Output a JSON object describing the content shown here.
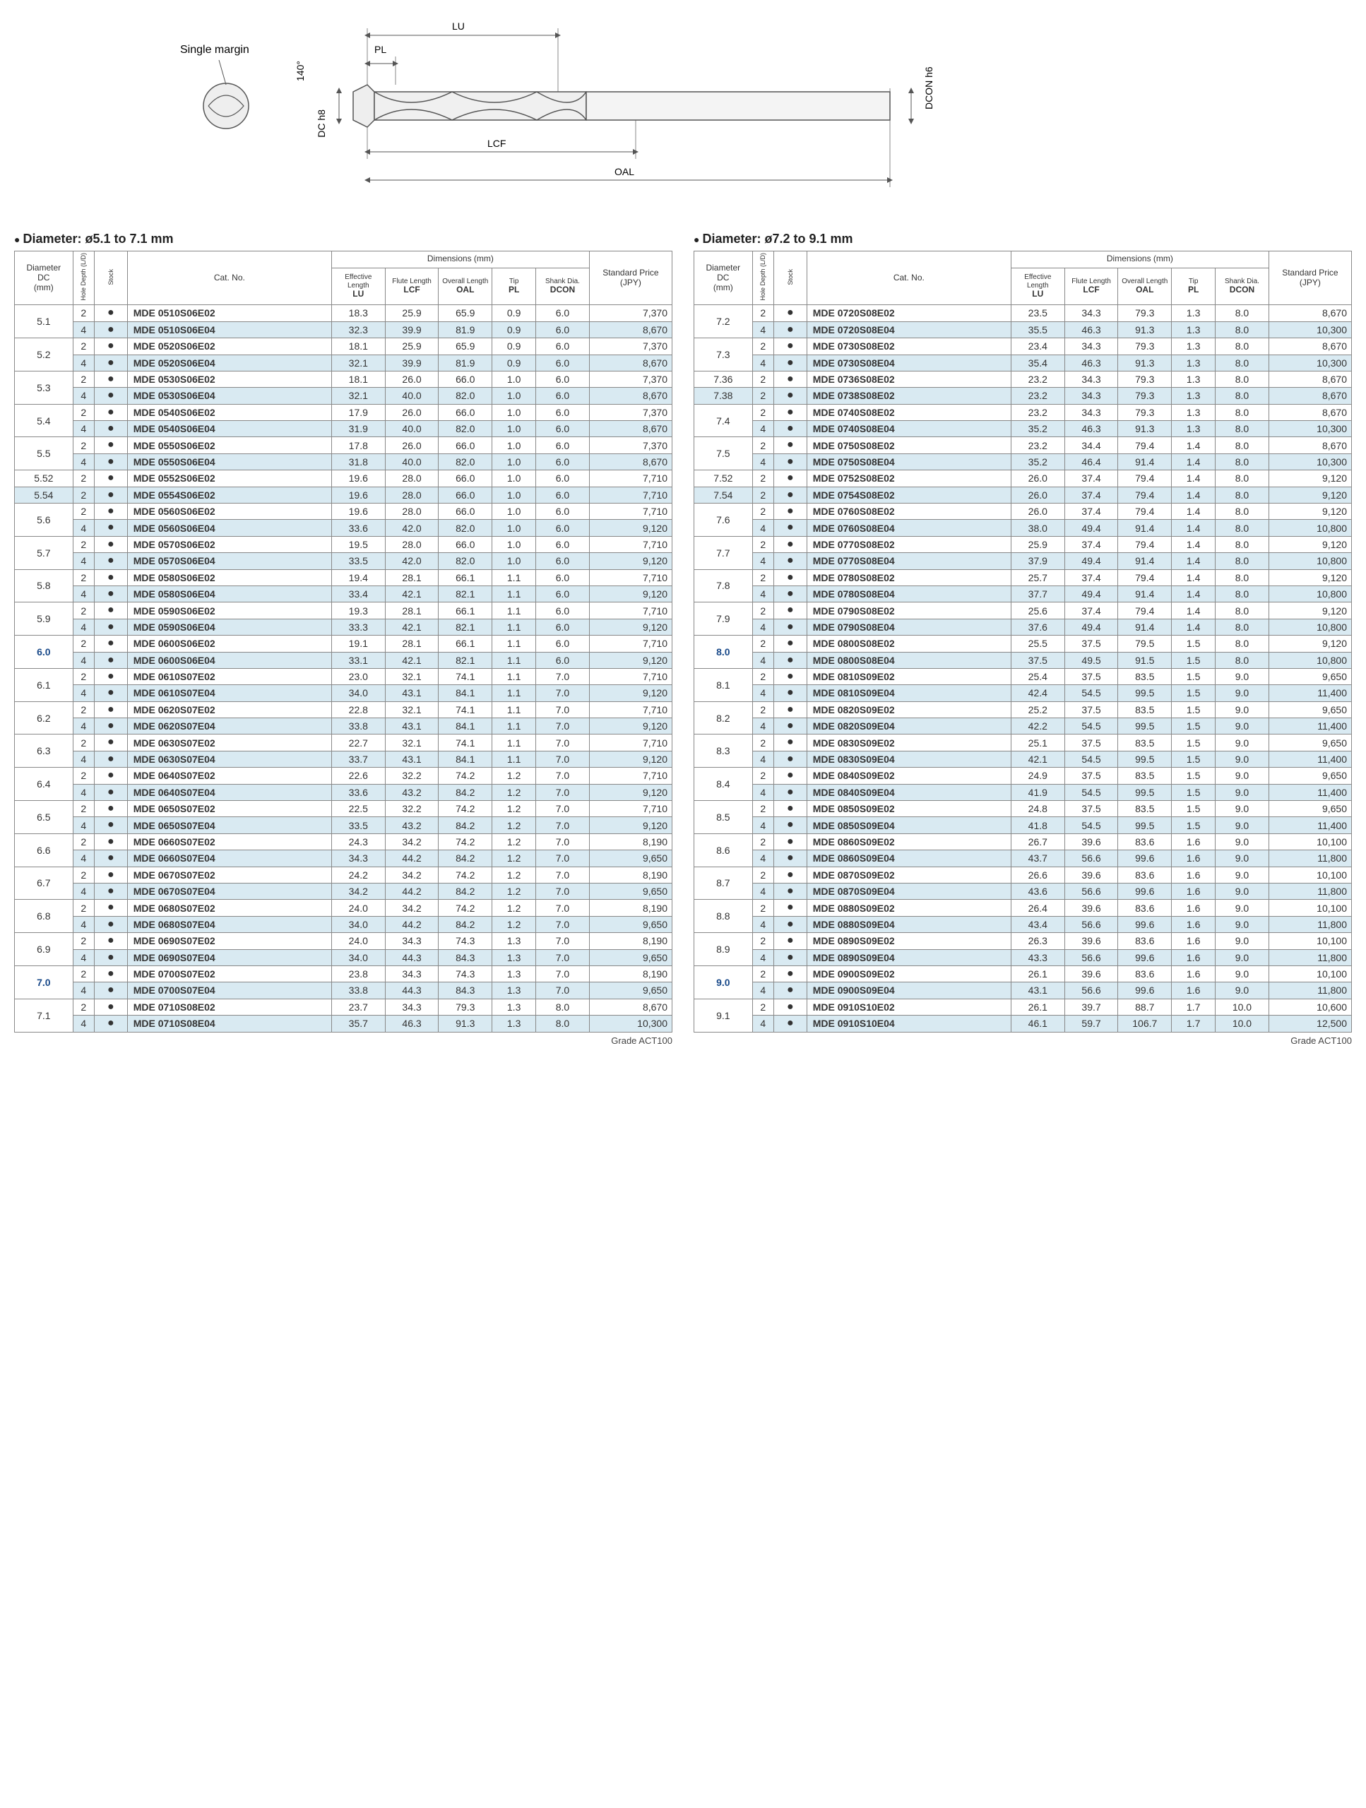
{
  "diagram": {
    "labels": {
      "single_margin": "Single margin",
      "angle": "140°",
      "dc_h8": "DC h8",
      "pl": "PL",
      "lu": "LU",
      "lcf": "LCF",
      "oal": "OAL",
      "dcon_h6": "DCON h6"
    },
    "colors": {
      "stroke": "#555555",
      "fill": "#dddddd"
    }
  },
  "section1_title": "Diameter: ø5.1 to 7.1 mm",
  "section2_title": "Diameter: ø7.2 to 9.1 mm",
  "grade_note": "Grade ACT100",
  "headers": {
    "dc": "Diameter\nDC\n(mm)",
    "depth": "Hole Depth (L/D)",
    "stock": "Stock",
    "catno": "Cat. No.",
    "dims": "Dimensions (mm)",
    "lu": "Effective Length",
    "lu_sym": "LU",
    "lcf": "Flute Length",
    "lcf_sym": "LCF",
    "oal": "Overall Length",
    "oal_sym": "OAL",
    "pl": "Tip",
    "pl_sym": "PL",
    "dcon": "Shank Dia.",
    "dcon_sym": "DCON",
    "price": "Standard Price\n(JPY)"
  },
  "highlight_dcs": [
    "6.0",
    "7.0",
    "8.0",
    "9.0"
  ],
  "table1": [
    {
      "dc": "5.1",
      "rows": [
        [
          "2",
          "●",
          "MDE 0510S06E02",
          "18.3",
          "25.9",
          "65.9",
          "0.9",
          "6.0",
          "7,370"
        ],
        [
          "4",
          "●",
          "MDE 0510S06E04",
          "32.3",
          "39.9",
          "81.9",
          "0.9",
          "6.0",
          "8,670"
        ]
      ]
    },
    {
      "dc": "5.2",
      "rows": [
        [
          "2",
          "●",
          "MDE 0520S06E02",
          "18.1",
          "25.9",
          "65.9",
          "0.9",
          "6.0",
          "7,370"
        ],
        [
          "4",
          "●",
          "MDE 0520S06E04",
          "32.1",
          "39.9",
          "81.9",
          "0.9",
          "6.0",
          "8,670"
        ]
      ]
    },
    {
      "dc": "5.3",
      "rows": [
        [
          "2",
          "●",
          "MDE 0530S06E02",
          "18.1",
          "26.0",
          "66.0",
          "1.0",
          "6.0",
          "7,370"
        ],
        [
          "4",
          "●",
          "MDE 0530S06E04",
          "32.1",
          "40.0",
          "82.0",
          "1.0",
          "6.0",
          "8,670"
        ]
      ]
    },
    {
      "dc": "5.4",
      "rows": [
        [
          "2",
          "●",
          "MDE 0540S06E02",
          "17.9",
          "26.0",
          "66.0",
          "1.0",
          "6.0",
          "7,370"
        ],
        [
          "4",
          "●",
          "MDE 0540S06E04",
          "31.9",
          "40.0",
          "82.0",
          "1.0",
          "6.0",
          "8,670"
        ]
      ]
    },
    {
      "dc": "5.5",
      "rows": [
        [
          "2",
          "●",
          "MDE 0550S06E02",
          "17.8",
          "26.0",
          "66.0",
          "1.0",
          "6.0",
          "7,370"
        ],
        [
          "4",
          "●",
          "MDE 0550S06E04",
          "31.8",
          "40.0",
          "82.0",
          "1.0",
          "6.0",
          "8,670"
        ]
      ]
    },
    {
      "dc": "5.52",
      "rows": [
        [
          "2",
          "●",
          "MDE 0552S06E02",
          "19.6",
          "28.0",
          "66.0",
          "1.0",
          "6.0",
          "7,710"
        ]
      ]
    },
    {
      "dc": "5.54",
      "rows": [
        [
          "2",
          "●",
          "MDE 0554S06E02",
          "19.6",
          "28.0",
          "66.0",
          "1.0",
          "6.0",
          "7,710"
        ]
      ]
    },
    {
      "dc": "5.6",
      "rows": [
        [
          "2",
          "●",
          "MDE 0560S06E02",
          "19.6",
          "28.0",
          "66.0",
          "1.0",
          "6.0",
          "7,710"
        ],
        [
          "4",
          "●",
          "MDE 0560S06E04",
          "33.6",
          "42.0",
          "82.0",
          "1.0",
          "6.0",
          "9,120"
        ]
      ]
    },
    {
      "dc": "5.7",
      "rows": [
        [
          "2",
          "●",
          "MDE 0570S06E02",
          "19.5",
          "28.0",
          "66.0",
          "1.0",
          "6.0",
          "7,710"
        ],
        [
          "4",
          "●",
          "MDE 0570S06E04",
          "33.5",
          "42.0",
          "82.0",
          "1.0",
          "6.0",
          "9,120"
        ]
      ]
    },
    {
      "dc": "5.8",
      "rows": [
        [
          "2",
          "●",
          "MDE 0580S06E02",
          "19.4",
          "28.1",
          "66.1",
          "1.1",
          "6.0",
          "7,710"
        ],
        [
          "4",
          "●",
          "MDE 0580S06E04",
          "33.4",
          "42.1",
          "82.1",
          "1.1",
          "6.0",
          "9,120"
        ]
      ]
    },
    {
      "dc": "5.9",
      "rows": [
        [
          "2",
          "●",
          "MDE 0590S06E02",
          "19.3",
          "28.1",
          "66.1",
          "1.1",
          "6.0",
          "7,710"
        ],
        [
          "4",
          "●",
          "MDE 0590S06E04",
          "33.3",
          "42.1",
          "82.1",
          "1.1",
          "6.0",
          "9,120"
        ]
      ]
    },
    {
      "dc": "6.0",
      "rows": [
        [
          "2",
          "●",
          "MDE 0600S06E02",
          "19.1",
          "28.1",
          "66.1",
          "1.1",
          "6.0",
          "7,710"
        ],
        [
          "4",
          "●",
          "MDE 0600S06E04",
          "33.1",
          "42.1",
          "82.1",
          "1.1",
          "6.0",
          "9,120"
        ]
      ]
    },
    {
      "dc": "6.1",
      "rows": [
        [
          "2",
          "●",
          "MDE 0610S07E02",
          "23.0",
          "32.1",
          "74.1",
          "1.1",
          "7.0",
          "7,710"
        ],
        [
          "4",
          "●",
          "MDE 0610S07E04",
          "34.0",
          "43.1",
          "84.1",
          "1.1",
          "7.0",
          "9,120"
        ]
      ]
    },
    {
      "dc": "6.2",
      "rows": [
        [
          "2",
          "●",
          "MDE 0620S07E02",
          "22.8",
          "32.1",
          "74.1",
          "1.1",
          "7.0",
          "7,710"
        ],
        [
          "4",
          "●",
          "MDE 0620S07E04",
          "33.8",
          "43.1",
          "84.1",
          "1.1",
          "7.0",
          "9,120"
        ]
      ]
    },
    {
      "dc": "6.3",
      "rows": [
        [
          "2",
          "●",
          "MDE 0630S07E02",
          "22.7",
          "32.1",
          "74.1",
          "1.1",
          "7.0",
          "7,710"
        ],
        [
          "4",
          "●",
          "MDE 0630S07E04",
          "33.7",
          "43.1",
          "84.1",
          "1.1",
          "7.0",
          "9,120"
        ]
      ]
    },
    {
      "dc": "6.4",
      "rows": [
        [
          "2",
          "●",
          "MDE 0640S07E02",
          "22.6",
          "32.2",
          "74.2",
          "1.2",
          "7.0",
          "7,710"
        ],
        [
          "4",
          "●",
          "MDE 0640S07E04",
          "33.6",
          "43.2",
          "84.2",
          "1.2",
          "7.0",
          "9,120"
        ]
      ]
    },
    {
      "dc": "6.5",
      "rows": [
        [
          "2",
          "●",
          "MDE 0650S07E02",
          "22.5",
          "32.2",
          "74.2",
          "1.2",
          "7.0",
          "7,710"
        ],
        [
          "4",
          "●",
          "MDE 0650S07E04",
          "33.5",
          "43.2",
          "84.2",
          "1.2",
          "7.0",
          "9,120"
        ]
      ]
    },
    {
      "dc": "6.6",
      "rows": [
        [
          "2",
          "●",
          "MDE 0660S07E02",
          "24.3",
          "34.2",
          "74.2",
          "1.2",
          "7.0",
          "8,190"
        ],
        [
          "4",
          "●",
          "MDE 0660S07E04",
          "34.3",
          "44.2",
          "84.2",
          "1.2",
          "7.0",
          "9,650"
        ]
      ]
    },
    {
      "dc": "6.7",
      "rows": [
        [
          "2",
          "●",
          "MDE 0670S07E02",
          "24.2",
          "34.2",
          "74.2",
          "1.2",
          "7.0",
          "8,190"
        ],
        [
          "4",
          "●",
          "MDE 0670S07E04",
          "34.2",
          "44.2",
          "84.2",
          "1.2",
          "7.0",
          "9,650"
        ]
      ]
    },
    {
      "dc": "6.8",
      "rows": [
        [
          "2",
          "●",
          "MDE 0680S07E02",
          "24.0",
          "34.2",
          "74.2",
          "1.2",
          "7.0",
          "8,190"
        ],
        [
          "4",
          "●",
          "MDE 0680S07E04",
          "34.0",
          "44.2",
          "84.2",
          "1.2",
          "7.0",
          "9,650"
        ]
      ]
    },
    {
      "dc": "6.9",
      "rows": [
        [
          "2",
          "●",
          "MDE 0690S07E02",
          "24.0",
          "34.3",
          "74.3",
          "1.3",
          "7.0",
          "8,190"
        ],
        [
          "4",
          "●",
          "MDE 0690S07E04",
          "34.0",
          "44.3",
          "84.3",
          "1.3",
          "7.0",
          "9,650"
        ]
      ]
    },
    {
      "dc": "7.0",
      "rows": [
        [
          "2",
          "●",
          "MDE 0700S07E02",
          "23.8",
          "34.3",
          "74.3",
          "1.3",
          "7.0",
          "8,190"
        ],
        [
          "4",
          "●",
          "MDE 0700S07E04",
          "33.8",
          "44.3",
          "84.3",
          "1.3",
          "7.0",
          "9,650"
        ]
      ]
    },
    {
      "dc": "7.1",
      "rows": [
        [
          "2",
          "●",
          "MDE 0710S08E02",
          "23.7",
          "34.3",
          "79.3",
          "1.3",
          "8.0",
          "8,670"
        ],
        [
          "4",
          "●",
          "MDE 0710S08E04",
          "35.7",
          "46.3",
          "91.3",
          "1.3",
          "8.0",
          "10,300"
        ]
      ]
    }
  ],
  "table2": [
    {
      "dc": "7.2",
      "rows": [
        [
          "2",
          "●",
          "MDE 0720S08E02",
          "23.5",
          "34.3",
          "79.3",
          "1.3",
          "8.0",
          "8,670"
        ],
        [
          "4",
          "●",
          "MDE 0720S08E04",
          "35.5",
          "46.3",
          "91.3",
          "1.3",
          "8.0",
          "10,300"
        ]
      ]
    },
    {
      "dc": "7.3",
      "rows": [
        [
          "2",
          "●",
          "MDE 0730S08E02",
          "23.4",
          "34.3",
          "79.3",
          "1.3",
          "8.0",
          "8,670"
        ],
        [
          "4",
          "●",
          "MDE 0730S08E04",
          "35.4",
          "46.3",
          "91.3",
          "1.3",
          "8.0",
          "10,300"
        ]
      ]
    },
    {
      "dc": "7.36",
      "rows": [
        [
          "2",
          "●",
          "MDE 0736S08E02",
          "23.2",
          "34.3",
          "79.3",
          "1.3",
          "8.0",
          "8,670"
        ]
      ]
    },
    {
      "dc": "7.38",
      "rows": [
        [
          "2",
          "●",
          "MDE 0738S08E02",
          "23.2",
          "34.3",
          "79.3",
          "1.3",
          "8.0",
          "8,670"
        ]
      ]
    },
    {
      "dc": "7.4",
      "rows": [
        [
          "2",
          "●",
          "MDE 0740S08E02",
          "23.2",
          "34.3",
          "79.3",
          "1.3",
          "8.0",
          "8,670"
        ],
        [
          "4",
          "●",
          "MDE 0740S08E04",
          "35.2",
          "46.3",
          "91.3",
          "1.3",
          "8.0",
          "10,300"
        ]
      ]
    },
    {
      "dc": "7.5",
      "rows": [
        [
          "2",
          "●",
          "MDE 0750S08E02",
          "23.2",
          "34.4",
          "79.4",
          "1.4",
          "8.0",
          "8,670"
        ],
        [
          "4",
          "●",
          "MDE 0750S08E04",
          "35.2",
          "46.4",
          "91.4",
          "1.4",
          "8.0",
          "10,300"
        ]
      ]
    },
    {
      "dc": "7.52",
      "rows": [
        [
          "2",
          "●",
          "MDE 0752S08E02",
          "26.0",
          "37.4",
          "79.4",
          "1.4",
          "8.0",
          "9,120"
        ]
      ]
    },
    {
      "dc": "7.54",
      "rows": [
        [
          "2",
          "●",
          "MDE 0754S08E02",
          "26.0",
          "37.4",
          "79.4",
          "1.4",
          "8.0",
          "9,120"
        ]
      ]
    },
    {
      "dc": "7.6",
      "rows": [
        [
          "2",
          "●",
          "MDE 0760S08E02",
          "26.0",
          "37.4",
          "79.4",
          "1.4",
          "8.0",
          "9,120"
        ],
        [
          "4",
          "●",
          "MDE 0760S08E04",
          "38.0",
          "49.4",
          "91.4",
          "1.4",
          "8.0",
          "10,800"
        ]
      ]
    },
    {
      "dc": "7.7",
      "rows": [
        [
          "2",
          "●",
          "MDE 0770S08E02",
          "25.9",
          "37.4",
          "79.4",
          "1.4",
          "8.0",
          "9,120"
        ],
        [
          "4",
          "●",
          "MDE 0770S08E04",
          "37.9",
          "49.4",
          "91.4",
          "1.4",
          "8.0",
          "10,800"
        ]
      ]
    },
    {
      "dc": "7.8",
      "rows": [
        [
          "2",
          "●",
          "MDE 0780S08E02",
          "25.7",
          "37.4",
          "79.4",
          "1.4",
          "8.0",
          "9,120"
        ],
        [
          "4",
          "●",
          "MDE 0780S08E04",
          "37.7",
          "49.4",
          "91.4",
          "1.4",
          "8.0",
          "10,800"
        ]
      ]
    },
    {
      "dc": "7.9",
      "rows": [
        [
          "2",
          "●",
          "MDE 0790S08E02",
          "25.6",
          "37.4",
          "79.4",
          "1.4",
          "8.0",
          "9,120"
        ],
        [
          "4",
          "●",
          "MDE 0790S08E04",
          "37.6",
          "49.4",
          "91.4",
          "1.4",
          "8.0",
          "10,800"
        ]
      ]
    },
    {
      "dc": "8.0",
      "rows": [
        [
          "2",
          "●",
          "MDE 0800S08E02",
          "25.5",
          "37.5",
          "79.5",
          "1.5",
          "8.0",
          "9,120"
        ],
        [
          "4",
          "●",
          "MDE 0800S08E04",
          "37.5",
          "49.5",
          "91.5",
          "1.5",
          "8.0",
          "10,800"
        ]
      ]
    },
    {
      "dc": "8.1",
      "rows": [
        [
          "2",
          "●",
          "MDE 0810S09E02",
          "25.4",
          "37.5",
          "83.5",
          "1.5",
          "9.0",
          "9,650"
        ],
        [
          "4",
          "●",
          "MDE 0810S09E04",
          "42.4",
          "54.5",
          "99.5",
          "1.5",
          "9.0",
          "11,400"
        ]
      ]
    },
    {
      "dc": "8.2",
      "rows": [
        [
          "2",
          "●",
          "MDE 0820S09E02",
          "25.2",
          "37.5",
          "83.5",
          "1.5",
          "9.0",
          "9,650"
        ],
        [
          "4",
          "●",
          "MDE 0820S09E04",
          "42.2",
          "54.5",
          "99.5",
          "1.5",
          "9.0",
          "11,400"
        ]
      ]
    },
    {
      "dc": "8.3",
      "rows": [
        [
          "2",
          "●",
          "MDE 0830S09E02",
          "25.1",
          "37.5",
          "83.5",
          "1.5",
          "9.0",
          "9,650"
        ],
        [
          "4",
          "●",
          "MDE 0830S09E04",
          "42.1",
          "54.5",
          "99.5",
          "1.5",
          "9.0",
          "11,400"
        ]
      ]
    },
    {
      "dc": "8.4",
      "rows": [
        [
          "2",
          "●",
          "MDE 0840S09E02",
          "24.9",
          "37.5",
          "83.5",
          "1.5",
          "9.0",
          "9,650"
        ],
        [
          "4",
          "●",
          "MDE 0840S09E04",
          "41.9",
          "54.5",
          "99.5",
          "1.5",
          "9.0",
          "11,400"
        ]
      ]
    },
    {
      "dc": "8.5",
      "rows": [
        [
          "2",
          "●",
          "MDE 0850S09E02",
          "24.8",
          "37.5",
          "83.5",
          "1.5",
          "9.0",
          "9,650"
        ],
        [
          "4",
          "●",
          "MDE 0850S09E04",
          "41.8",
          "54.5",
          "99.5",
          "1.5",
          "9.0",
          "11,400"
        ]
      ]
    },
    {
      "dc": "8.6",
      "rows": [
        [
          "2",
          "●",
          "MDE 0860S09E02",
          "26.7",
          "39.6",
          "83.6",
          "1.6",
          "9.0",
          "10,100"
        ],
        [
          "4",
          "●",
          "MDE 0860S09E04",
          "43.7",
          "56.6",
          "99.6",
          "1.6",
          "9.0",
          "11,800"
        ]
      ]
    },
    {
      "dc": "8.7",
      "rows": [
        [
          "2",
          "●",
          "MDE 0870S09E02",
          "26.6",
          "39.6",
          "83.6",
          "1.6",
          "9.0",
          "10,100"
        ],
        [
          "4",
          "●",
          "MDE 0870S09E04",
          "43.6",
          "56.6",
          "99.6",
          "1.6",
          "9.0",
          "11,800"
        ]
      ]
    },
    {
      "dc": "8.8",
      "rows": [
        [
          "2",
          "●",
          "MDE 0880S09E02",
          "26.4",
          "39.6",
          "83.6",
          "1.6",
          "9.0",
          "10,100"
        ],
        [
          "4",
          "●",
          "MDE 0880S09E04",
          "43.4",
          "56.6",
          "99.6",
          "1.6",
          "9.0",
          "11,800"
        ]
      ]
    },
    {
      "dc": "8.9",
      "rows": [
        [
          "2",
          "●",
          "MDE 0890S09E02",
          "26.3",
          "39.6",
          "83.6",
          "1.6",
          "9.0",
          "10,100"
        ],
        [
          "4",
          "●",
          "MDE 0890S09E04",
          "43.3",
          "56.6",
          "99.6",
          "1.6",
          "9.0",
          "11,800"
        ]
      ]
    },
    {
      "dc": "9.0",
      "rows": [
        [
          "2",
          "●",
          "MDE 0900S09E02",
          "26.1",
          "39.6",
          "83.6",
          "1.6",
          "9.0",
          "10,100"
        ],
        [
          "4",
          "●",
          "MDE 0900S09E04",
          "43.1",
          "56.6",
          "99.6",
          "1.6",
          "9.0",
          "11,800"
        ]
      ]
    },
    {
      "dc": "9.1",
      "rows": [
        [
          "2",
          "●",
          "MDE 0910S10E02",
          "26.1",
          "39.7",
          "88.7",
          "1.7",
          "10.0",
          "10,600"
        ],
        [
          "4",
          "●",
          "MDE 0910S10E04",
          "46.1",
          "59.7",
          "106.7",
          "1.7",
          "10.0",
          "12,500"
        ]
      ]
    }
  ]
}
